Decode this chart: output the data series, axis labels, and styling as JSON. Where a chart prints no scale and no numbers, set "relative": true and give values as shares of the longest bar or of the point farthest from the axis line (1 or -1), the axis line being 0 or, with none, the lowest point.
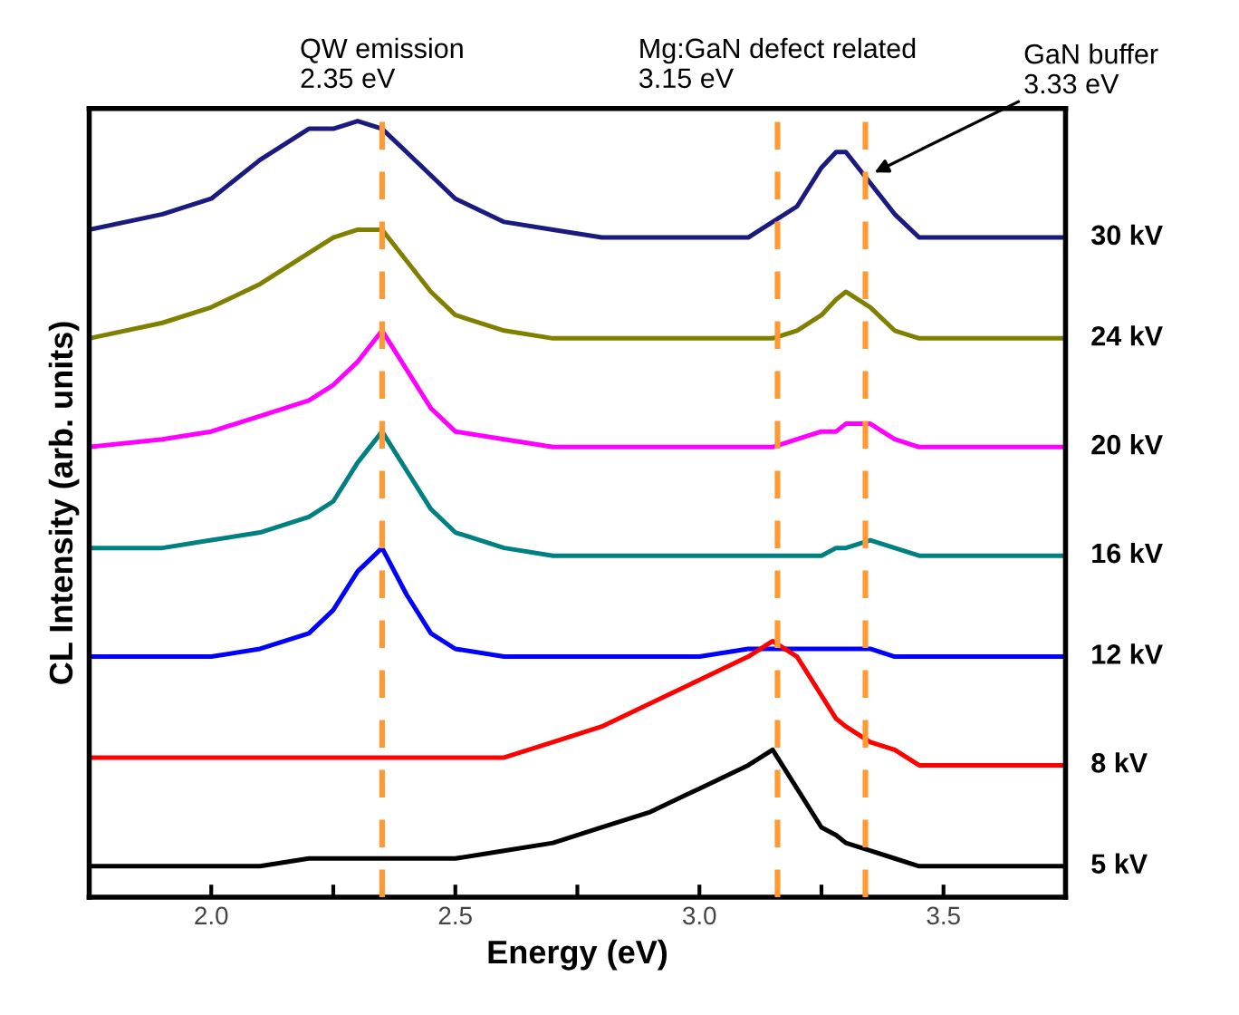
{
  "chart_data": {
    "type": "line",
    "relative": true,
    "xlabel": "Energy (eV)",
    "ylabel": "CL Intensity (arb. units)",
    "xlim": [
      1.75,
      3.75
    ],
    "xticks": [
      {
        "value": 2.0,
        "label": "2.0"
      },
      {
        "value": 2.25,
        "label": null
      },
      {
        "value": 2.5,
        "label": "2.5"
      },
      {
        "value": 2.75,
        "label": null
      },
      {
        "value": 3.0,
        "label": "3.0"
      },
      {
        "value": 3.25,
        "label": null
      },
      {
        "value": 3.5,
        "label": "3.5"
      }
    ],
    "x": [
      1.75,
      1.9,
      2.0,
      2.1,
      2.2,
      2.25,
      2.3,
      2.35,
      2.4,
      2.45,
      2.5,
      2.6,
      2.7,
      2.8,
      2.9,
      3.0,
      3.1,
      3.15,
      3.2,
      3.25,
      3.28,
      3.3,
      3.35,
      3.4,
      3.45,
      3.5,
      3.6,
      3.75
    ],
    "series": [
      {
        "name": "30 kV",
        "color": "#1a1a80",
        "values": [
          0.86,
          0.88,
          0.9,
          0.95,
          0.99,
          0.99,
          1.0,
          0.99,
          0.96,
          0.93,
          0.9,
          0.87,
          0.86,
          0.85,
          0.85,
          0.85,
          0.85,
          0.87,
          0.89,
          0.94,
          0.96,
          0.96,
          0.92,
          0.88,
          0.85,
          0.85,
          0.85,
          0.85
        ]
      },
      {
        "name": "24 kV",
        "color": "#808000",
        "values": [
          0.72,
          0.74,
          0.76,
          0.79,
          0.83,
          0.85,
          0.86,
          0.86,
          0.82,
          0.78,
          0.75,
          0.73,
          0.72,
          0.72,
          0.72,
          0.72,
          0.72,
          0.72,
          0.73,
          0.75,
          0.77,
          0.78,
          0.76,
          0.73,
          0.72,
          0.72,
          0.72,
          0.72
        ]
      },
      {
        "name": "20 kV",
        "color": "#ff00ff",
        "values": [
          0.58,
          0.59,
          0.6,
          0.62,
          0.64,
          0.66,
          0.69,
          0.73,
          0.68,
          0.63,
          0.6,
          0.59,
          0.58,
          0.58,
          0.58,
          0.58,
          0.58,
          0.58,
          0.59,
          0.6,
          0.6,
          0.61,
          0.61,
          0.59,
          0.58,
          0.58,
          0.58,
          0.58
        ]
      },
      {
        "name": "16 kV",
        "color": "#008080",
        "values": [
          0.45,
          0.45,
          0.46,
          0.47,
          0.49,
          0.51,
          0.56,
          0.6,
          0.55,
          0.5,
          0.47,
          0.45,
          0.44,
          0.44,
          0.44,
          0.44,
          0.44,
          0.44,
          0.44,
          0.44,
          0.45,
          0.45,
          0.46,
          0.45,
          0.44,
          0.44,
          0.44,
          0.44
        ]
      },
      {
        "name": "12 kV",
        "color": "#0000ff",
        "values": [
          0.31,
          0.31,
          0.31,
          0.32,
          0.34,
          0.37,
          0.42,
          0.45,
          0.39,
          0.34,
          0.32,
          0.31,
          0.31,
          0.31,
          0.31,
          0.31,
          0.32,
          0.32,
          0.32,
          0.32,
          0.32,
          0.32,
          0.32,
          0.31,
          0.31,
          0.31,
          0.31,
          0.31
        ]
      },
      {
        "name": "8 kV",
        "color": "#ff0000",
        "values": [
          0.18,
          0.18,
          0.18,
          0.18,
          0.18,
          0.18,
          0.18,
          0.18,
          0.18,
          0.18,
          0.18,
          0.18,
          0.2,
          0.22,
          0.25,
          0.28,
          0.31,
          0.33,
          0.31,
          0.26,
          0.23,
          0.22,
          0.2,
          0.19,
          0.17,
          0.17,
          0.17,
          0.17
        ]
      },
      {
        "name": "5 kV",
        "color": "#000000",
        "values": [
          0.04,
          0.04,
          0.04,
          0.04,
          0.05,
          0.05,
          0.05,
          0.05,
          0.05,
          0.05,
          0.05,
          0.06,
          0.07,
          0.09,
          0.11,
          0.14,
          0.17,
          0.19,
          0.14,
          0.09,
          0.08,
          0.07,
          0.06,
          0.05,
          0.04,
          0.04,
          0.04,
          0.04
        ]
      }
    ],
    "ref_lines": [
      {
        "axis": "x",
        "value": 2.35,
        "label": "QW emission\n2.35 eV",
        "color": "#ff9933",
        "line_style": "dashed"
      },
      {
        "axis": "x",
        "value": 3.16,
        "label": "Mg:GaN defect related\n3.15 eV",
        "color": "#ff9933",
        "line_style": "dashed"
      },
      {
        "axis": "x",
        "value": 3.34,
        "label": null,
        "color": "#ff9933",
        "line_style": "dashed"
      }
    ],
    "annotations": [
      "GaN buffer\n3.33 eV"
    ],
    "grid": false,
    "legend": false,
    "marker": "none",
    "line_style": "solid"
  }
}
